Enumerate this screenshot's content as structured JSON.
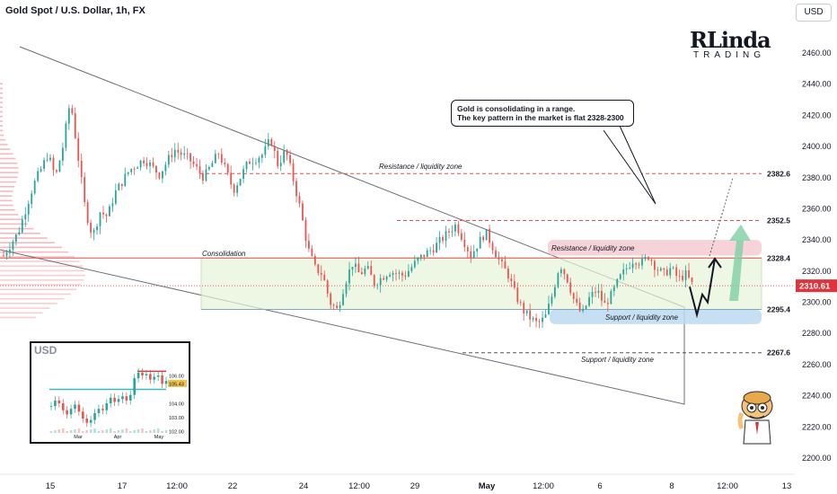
{
  "header": {
    "title": "Gold Spot / U.S. Dollar, 1h, FX"
  },
  "currency_button": "USD",
  "logo": {
    "line1": "RLinda",
    "line2": "TRADING"
  },
  "note": {
    "line1": "Gold is consolidating in a range.",
    "line2": "The key pattern in the market is flat 2328-2300"
  },
  "annotations": {
    "consolidation": "Consolidation",
    "resistance_upper": "Resistance / liquidity zone",
    "resistance_middle": "Resistance / liquidity zone",
    "support_middle": "Support / liquidity zone",
    "support_lower": "Support / liquidity zone"
  },
  "chart_data": {
    "type": "candlestick",
    "symbol": "Gold Spot / U.S. Dollar",
    "timeframe": "1h",
    "ylim": [
      2190,
      2490
    ],
    "y_ticks": [
      2200,
      2220,
      2240,
      2260,
      2280,
      2300,
      2320,
      2340,
      2360,
      2380,
      2400,
      2420,
      2440,
      2460
    ],
    "x_ticks": [
      "15",
      "17",
      "12:00",
      "22",
      "24",
      "12:00",
      "29",
      "May",
      "12:00",
      "6",
      "8",
      "12:00",
      "13"
    ],
    "levels": [
      {
        "value": 2382.6,
        "label": "2382.6",
        "style": "dashed",
        "color": "#e05050"
      },
      {
        "value": 2352.5,
        "label": "2352.5",
        "style": "dashed",
        "color": "#e05050"
      },
      {
        "value": 2328.4,
        "label": "2328.4",
        "style": "solid",
        "color": "#e05050"
      },
      {
        "value": 2295.4,
        "label": "2295.4",
        "style": "solid",
        "color": "#7fa8c7"
      },
      {
        "value": 2267.6,
        "label": "2267.6",
        "style": "dashed",
        "color": "#555555"
      }
    ],
    "last_price": {
      "value": 2310.61,
      "label": "2310.61",
      "color": "#e0333c"
    },
    "consolidation_range": [
      2295.4,
      2328.4
    ],
    "resistance_zone": [
      2330,
      2340
    ],
    "support_zone": [
      2286,
      2295.4
    ],
    "price_path": [
      [
        0,
        2330
      ],
      [
        2,
        2345
      ],
      [
        4,
        2375
      ],
      [
        6,
        2395
      ],
      [
        7,
        2380
      ],
      [
        8,
        2400
      ],
      [
        9,
        2430
      ],
      [
        10,
        2395
      ],
      [
        11,
        2360
      ],
      [
        12,
        2342
      ],
      [
        13,
        2358
      ],
      [
        14,
        2355
      ],
      [
        15,
        2370
      ],
      [
        17,
        2385
      ],
      [
        19,
        2392
      ],
      [
        21,
        2382
      ],
      [
        23,
        2398
      ],
      [
        25,
        2392
      ],
      [
        27,
        2380
      ],
      [
        29,
        2396
      ],
      [
        31,
        2372
      ],
      [
        33,
        2390
      ],
      [
        35,
        2395
      ],
      [
        36,
        2405
      ],
      [
        37,
        2388
      ],
      [
        38,
        2398
      ],
      [
        39,
        2380
      ],
      [
        40,
        2360
      ],
      [
        41,
        2335
      ],
      [
        42,
        2322
      ],
      [
        43,
        2318
      ],
      [
        44,
        2300
      ],
      [
        45,
        2295
      ],
      [
        46,
        2312
      ],
      [
        47,
        2325
      ],
      [
        48,
        2318
      ],
      [
        49,
        2322
      ],
      [
        50,
        2312
      ],
      [
        52,
        2320
      ],
      [
        54,
        2317
      ],
      [
        56,
        2328
      ],
      [
        58,
        2335
      ],
      [
        60,
        2345
      ],
      [
        61,
        2350
      ],
      [
        62,
        2340
      ],
      [
        63,
        2330
      ],
      [
        64,
        2338
      ],
      [
        65,
        2345
      ],
      [
        66,
        2335
      ],
      [
        67,
        2325
      ],
      [
        68,
        2318
      ],
      [
        69,
        2305
      ],
      [
        70,
        2295
      ],
      [
        71,
        2290
      ],
      [
        72,
        2286
      ],
      [
        73,
        2290
      ],
      [
        74,
        2305
      ],
      [
        75,
        2325
      ],
      [
        76,
        2315
      ],
      [
        77,
        2300
      ],
      [
        78,
        2292
      ],
      [
        79,
        2303
      ],
      [
        80,
        2308
      ],
      [
        81,
        2298
      ],
      [
        82,
        2305
      ],
      [
        83,
        2315
      ],
      [
        84,
        2322
      ],
      [
        85,
        2328
      ],
      [
        86,
        2325
      ],
      [
        87,
        2330
      ],
      [
        88,
        2322
      ],
      [
        89,
        2318
      ],
      [
        90,
        2322
      ],
      [
        91,
        2315
      ],
      [
        92,
        2318
      ],
      [
        93,
        2310
      ]
    ],
    "projection": [
      [
        93,
        2310
      ],
      [
        94,
        2292
      ],
      [
        95,
        2305
      ],
      [
        96,
        2300
      ],
      [
        97,
        2328
      ]
    ],
    "inset": {
      "title": "USD",
      "price_labels": [
        "106.00",
        "105.43",
        "104.00",
        "103.00",
        "102.00"
      ],
      "x_labels": [
        "Mar",
        "Apr",
        "May"
      ],
      "last_price": {
        "value": 105.43,
        "label": "105.43"
      },
      "level_upper": 106.3,
      "level_lower": 105.0,
      "series": [
        103.8,
        104.2,
        104.0,
        103.5,
        103.2,
        103.6,
        103.9,
        103.4,
        102.9,
        102.6,
        102.8,
        103.3,
        103.6,
        103.5,
        104.0,
        104.4,
        104.1,
        104.3,
        104.5,
        104.2,
        104.6,
        105.8,
        106.2,
        106.0,
        106.1,
        105.7,
        105.9,
        106.0,
        105.4,
        105.6
      ]
    }
  }
}
